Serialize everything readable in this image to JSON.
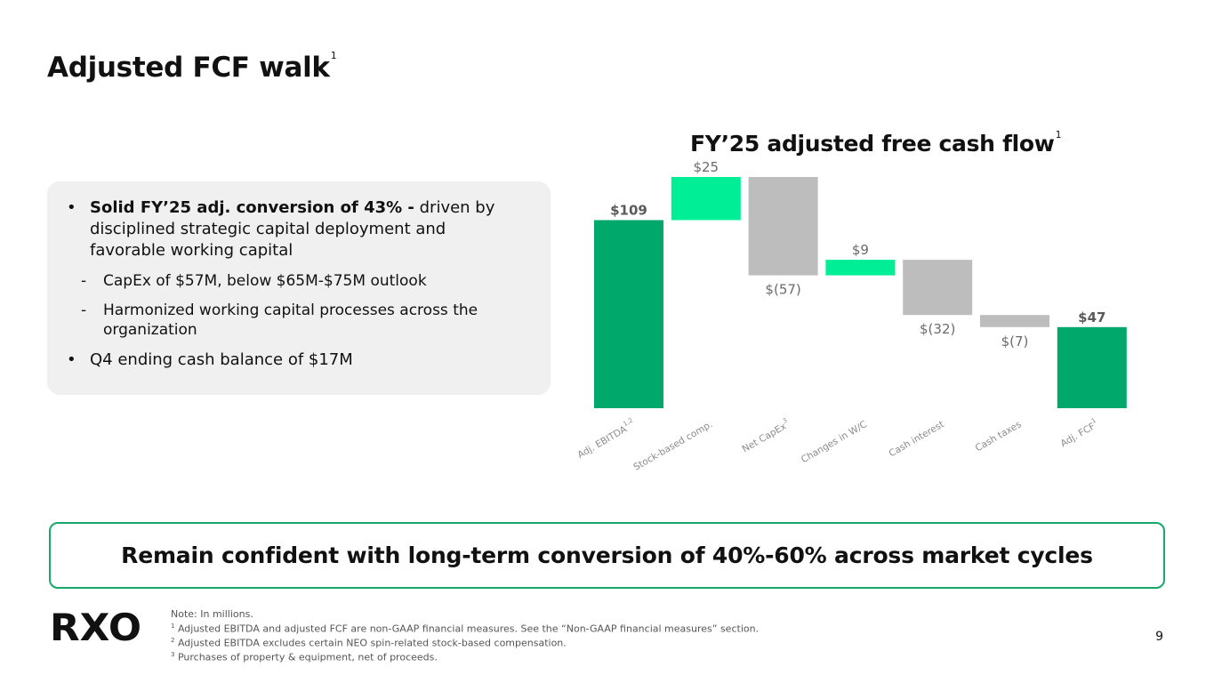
{
  "page": {
    "title": "Adjusted FCF walk",
    "title_footnote": "1",
    "page_number": "9"
  },
  "bullets": {
    "b1_bold": "Solid FY’25 adj. conversion of 43% -",
    "b1_line1_rest": " driven by",
    "b1_line2": "disciplined strategic capital deployment and",
    "b1_line3": "favorable working capital",
    "sub1": "CapEx of $57M, below $65M-$75M outlook",
    "sub2_line1": "Harmonized working capital processes across the",
    "sub2_line2": "organization",
    "b2": "Q4 ending cash balance of $17M",
    "bullet_glyph": "•",
    "dash_glyph": "-"
  },
  "callout": {
    "text": "Remain confident with long-term conversion of 40%-60% across market cycles"
  },
  "logo": {
    "text": "RXO"
  },
  "footnotes": {
    "note": "Note: In millions.",
    "f1_mark": "1",
    "f1": " Adjusted EBITDA and adjusted FCF are non-GAAP financial measures. See the “Non-GAAP financial measures” section.",
    "f2_mark": "2",
    "f2": " Adjusted EBITDA excludes certain NEO spin-related stock-based compensation.",
    "f3_mark": "3",
    "f3": " Purchases of property & equipment, net of proceeds."
  },
  "colors": {
    "total": "#00a86b",
    "increase": "#00ee95",
    "decrease": "#bdbdbd",
    "total_label": "#5a5a5a",
    "value_label": "#6b6b6b",
    "category_label": "#8a8a8a",
    "callout_border": "#17a86a"
  },
  "chart_data": {
    "type": "bar",
    "subtype": "waterfall",
    "title": "FY’25 adjusted free cash flow",
    "title_footnote": "1",
    "categories": [
      "Adj. EBITDA",
      "Stock-based comp.",
      "Net CapEx",
      "Changes in W/C",
      "Cash interest",
      "Cash taxes",
      "Adj. FCF"
    ],
    "category_footnotes": [
      "1,2",
      "",
      "3",
      "",
      "",
      "",
      "1"
    ],
    "values": [
      109,
      25,
      -57,
      9,
      -32,
      -7,
      47
    ],
    "value_labels": [
      "$109",
      "$25",
      "$(57)",
      "$9",
      "$(32)",
      "$(7)",
      "$47"
    ],
    "kinds": [
      "total",
      "increase",
      "decrease",
      "increase",
      "decrease",
      "decrease",
      "total"
    ],
    "ylim": [
      0,
      134
    ],
    "grid": false,
    "legend": "none"
  }
}
